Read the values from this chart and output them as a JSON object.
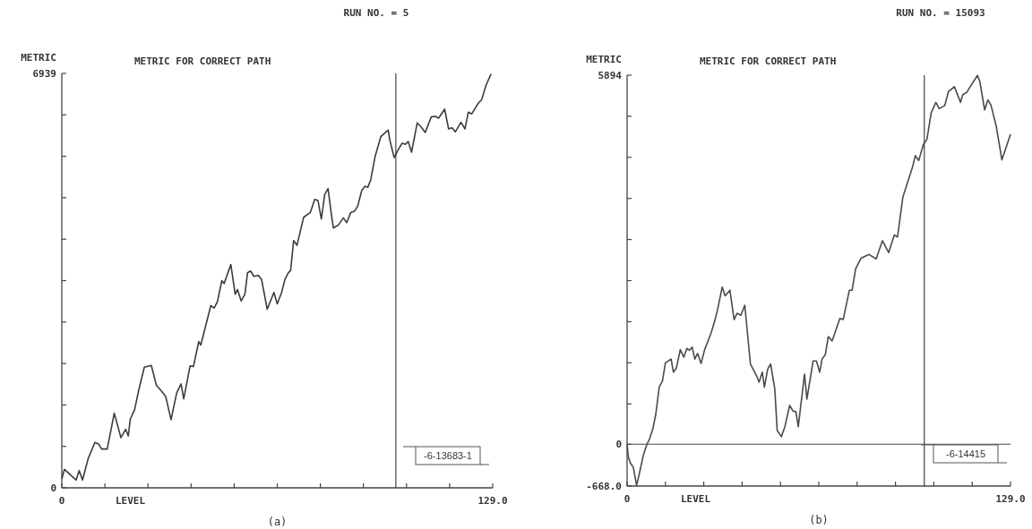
{
  "chart_data": [
    {
      "type": "line",
      "subtitle": "RUN NO. = 5",
      "title": "METRIC FOR CORRECT PATH",
      "ylabel": "METRIC",
      "xlabel": "LEVEL",
      "annotations": [
        "(a)",
        "-6-13683-1"
      ],
      "grid": false,
      "marker": "none",
      "line_style": "solid",
      "xlim": [
        0,
        129
      ],
      "ylim": [
        0,
        6939
      ],
      "xticks": [
        {
          "value": 0,
          "label": "0"
        },
        {
          "value": 12.9,
          "label": null
        },
        {
          "value": 25.8,
          "label": null
        },
        {
          "value": 38.7,
          "label": null
        },
        {
          "value": 51.6,
          "label": null
        },
        {
          "value": 64.5,
          "label": null
        },
        {
          "value": 77.4,
          "label": null
        },
        {
          "value": 90.3,
          "label": null
        },
        {
          "value": 103.2,
          "label": null
        },
        {
          "value": 116.1,
          "label": null
        },
        {
          "value": 129,
          "label": "129.0"
        }
      ],
      "yticks": [
        {
          "value": 0,
          "label": "0"
        },
        {
          "value": 693.9,
          "label": null
        },
        {
          "value": 1387.8,
          "label": null
        },
        {
          "value": 2081.7,
          "label": null
        },
        {
          "value": 2775.6,
          "label": null
        },
        {
          "value": 3469.5,
          "label": null
        },
        {
          "value": 4163.4,
          "label": null
        },
        {
          "value": 4857.3,
          "label": null
        },
        {
          "value": 5551.2,
          "label": null
        },
        {
          "value": 6245.1,
          "label": null
        },
        {
          "value": 6939,
          "label": "6939"
        }
      ],
      "ref_lines": [
        {
          "axis": "x",
          "value": 100,
          "label": null
        }
      ],
      "series": [
        {
          "color": "#3c3c3c",
          "x": [
            0,
            0.8,
            4.3,
            5.2,
            6.2,
            7.9,
            9.9,
            11.1,
            11.9,
            13.6,
            15.7,
            17.7,
            19.1,
            19.9,
            20.5,
            21.8,
            23.0,
            24.7,
            26.8,
            28.3,
            30.3,
            31.1,
            32.7,
            34.4,
            35.7,
            36.5,
            38.4,
            39.4,
            41.0,
            41.6,
            44.6,
            45.6,
            46.6,
            47.9,
            48.6,
            50.6,
            51.9,
            52.6,
            53.7,
            54.8,
            55.6,
            56.5,
            57.5,
            58.8,
            59.8,
            61.5,
            63.5,
            64.5,
            65.8,
            66.8,
            67.8,
            68.5,
            69.4,
            70.4,
            72.4,
            74.4,
            75.7,
            76.7,
            77.7,
            78.7,
            79.7,
            80.7,
            81.3,
            82.8,
            84.3,
            85.3,
            86.5,
            87.6,
            88.6,
            89.8,
            90.8,
            91.6,
            92.5,
            93.8,
            95.5,
            97.7,
            98.2,
            99.5,
            100.7,
            101.9,
            102.9,
            103.7,
            104.7,
            106.4,
            107.6,
            108.8,
            110.6,
            111.8,
            112.8,
            114.6,
            115.8,
            116.8,
            117.8,
            119.5,
            120.7,
            121.7,
            122.7,
            124.7,
            125.7,
            127.0,
            128.5
          ],
          "values": [
            150,
            310,
            130,
            290,
            130,
            490,
            760,
            730,
            650,
            650,
            1250,
            840,
            980,
            870,
            1150,
            1310,
            1630,
            2020,
            2050,
            1720,
            1590,
            1530,
            1140,
            1590,
            1740,
            1490,
            2040,
            2030,
            2450,
            2390,
            3050,
            3010,
            3120,
            3470,
            3420,
            3740,
            3240,
            3320,
            3130,
            3240,
            3600,
            3630,
            3540,
            3560,
            3490,
            2990,
            3270,
            3080,
            3270,
            3490,
            3600,
            3640,
            4140,
            4060,
            4530,
            4610,
            4830,
            4810,
            4500,
            4910,
            5010,
            4580,
            4350,
            4400,
            4520,
            4440,
            4610,
            4630,
            4720,
            4980,
            5050,
            5030,
            5160,
            5550,
            5880,
            5990,
            5820,
            5530,
            5660,
            5770,
            5750,
            5800,
            5620,
            6110,
            6040,
            5950,
            6210,
            6220,
            6190,
            6340,
            6010,
            6030,
            5960,
            6120,
            6010,
            6290,
            6260,
            6440,
            6500,
            6740,
            6930
          ]
        }
      ]
    },
    {
      "type": "line",
      "subtitle": "RUN NO. = 15093",
      "title": "METRIC FOR CORRECT PATH",
      "ylabel": "METRIC",
      "xlabel": "LEVEL",
      "annotations": [
        "(b)",
        "-6-14415"
      ],
      "grid": false,
      "marker": "none",
      "line_style": "solid",
      "xlim": [
        0,
        129
      ],
      "ylim": [
        -668,
        5894
      ],
      "xticks": [
        {
          "value": 0,
          "label": "0"
        },
        {
          "value": 12.9,
          "label": null
        },
        {
          "value": 25.8,
          "label": null
        },
        {
          "value": 38.7,
          "label": null
        },
        {
          "value": 51.6,
          "label": null
        },
        {
          "value": 64.5,
          "label": null
        },
        {
          "value": 77.4,
          "label": null
        },
        {
          "value": 90.3,
          "label": null
        },
        {
          "value": 103.2,
          "label": null
        },
        {
          "value": 116.1,
          "label": null
        },
        {
          "value": 129,
          "label": "129.0"
        }
      ],
      "yticks": [
        {
          "value": -668,
          "label": "-668.0"
        },
        {
          "value": 0,
          "label": "0"
        },
        {
          "value": 644.4,
          "label": null
        },
        {
          "value": 1300.6,
          "label": null
        },
        {
          "value": 1956.8,
          "label": null
        },
        {
          "value": 2613,
          "label": null
        },
        {
          "value": 3269.2,
          "label": null
        },
        {
          "value": 3925.4,
          "label": null
        },
        {
          "value": 4581.6,
          "label": null
        },
        {
          "value": 5237.8,
          "label": null
        },
        {
          "value": 5894,
          "label": "5894"
        }
      ],
      "ref_lines": [
        {
          "axis": "x",
          "value": 100,
          "label": null
        },
        {
          "axis": "y",
          "value": 0,
          "label": null
        }
      ],
      "series": [
        {
          "color": "#4a4a4a",
          "x": [
            0,
            0.4,
            1.1,
            2.1,
            3.2,
            4.4,
            5.5,
            6.6,
            7.6,
            8.7,
            9.7,
            10.8,
            11.9,
            12.9,
            14.8,
            15.6,
            16.6,
            17.9,
            19.1,
            20.1,
            21.0,
            21.9,
            22.8,
            23.7,
            24.9,
            26.1,
            28.3,
            29.6,
            30.4,
            32.0,
            33.0,
            34.6,
            36.0,
            37.0,
            38.3,
            39.6,
            41.5,
            43.6,
            44.4,
            45.5,
            46.2,
            47.3,
            48.3,
            49.7,
            50.5,
            51.9,
            53.1,
            54.7,
            55.8,
            56.8,
            57.6,
            59.7,
            60.5,
            62.6,
            63.7,
            64.8,
            65.6,
            66.7,
            67.7,
            69.0,
            71.6,
            72.7,
            74.8,
            75.7,
            76.9,
            78.7,
            81.4,
            83.8,
            85.9,
            88.0,
            89.9,
            91.0,
            92.8,
            93.9,
            96.0,
            97.0,
            98.1,
            99.7,
            100.9,
            102.3,
            103.9,
            105.0,
            106.9,
            108.1,
            110.1,
            112.2,
            112.9,
            114.3,
            116.1,
            117.9,
            118.7,
            120.3,
            121.4,
            122.4,
            124.2,
            126.1,
            129.0
          ],
          "values": [
            0,
            -200,
            -300,
            -370,
            -660,
            -410,
            -170,
            -10,
            90,
            250,
            490,
            910,
            1010,
            1300,
            1360,
            1150,
            1220,
            1510,
            1390,
            1530,
            1500,
            1550,
            1360,
            1450,
            1290,
            1510,
            1780,
            1990,
            2140,
            2510,
            2370,
            2460,
            1990,
            2090,
            2060,
            2220,
            1280,
            1090,
            990,
            1150,
            910,
            1200,
            1280,
            880,
            220,
            120,
            280,
            620,
            530,
            520,
            280,
            1120,
            720,
            1330,
            1330,
            1150,
            1360,
            1430,
            1720,
            1650,
            2010,
            1990,
            2460,
            2460,
            2800,
            2970,
            3030,
            2960,
            3250,
            3060,
            3340,
            3310,
            3950,
            4110,
            4420,
            4610,
            4530,
            4790,
            4870,
            5290,
            5460,
            5360,
            5410,
            5630,
            5710,
            5460,
            5580,
            5620,
            5760,
            5890,
            5790,
            5340,
            5500,
            5420,
            5080,
            4540,
            4950
          ]
        }
      ]
    }
  ]
}
